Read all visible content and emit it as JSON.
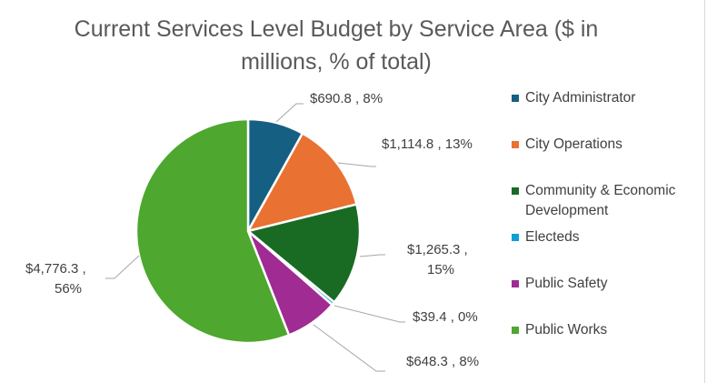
{
  "chart_data": {
    "type": "pie",
    "title": "Current Services Level Budget by Service Area ($ in millions, % of total)",
    "title_lines": [
      "Current Services Level Budget by Service Area ($ in",
      "millions, % of total)"
    ],
    "categories": [
      "City Administrator",
      "City Operations",
      "Community & Economic Development",
      "Electeds",
      "Public Safety",
      "Public Works"
    ],
    "values": [
      690.8,
      1114.8,
      1265.3,
      39.4,
      648.3,
      4776.3
    ],
    "percents": [
      8,
      13,
      15,
      0,
      8,
      56
    ],
    "data_labels": [
      [
        "$690.8 , 8%"
      ],
      [
        "$1,114.8 , 13%"
      ],
      [
        "$1,265.3 ,",
        "15%"
      ],
      [
        "$39.4 , 0%"
      ],
      [
        "$648.3 , 8%"
      ],
      [
        "$4,776.3 ,",
        "56%"
      ]
    ],
    "colors": [
      "#156082",
      "#E97132",
      "#196B24",
      "#0F9ED5",
      "#A02B93",
      "#4EA72E"
    ],
    "legend_placement": "right",
    "start_angle": "12 o'clock, clockwise"
  }
}
